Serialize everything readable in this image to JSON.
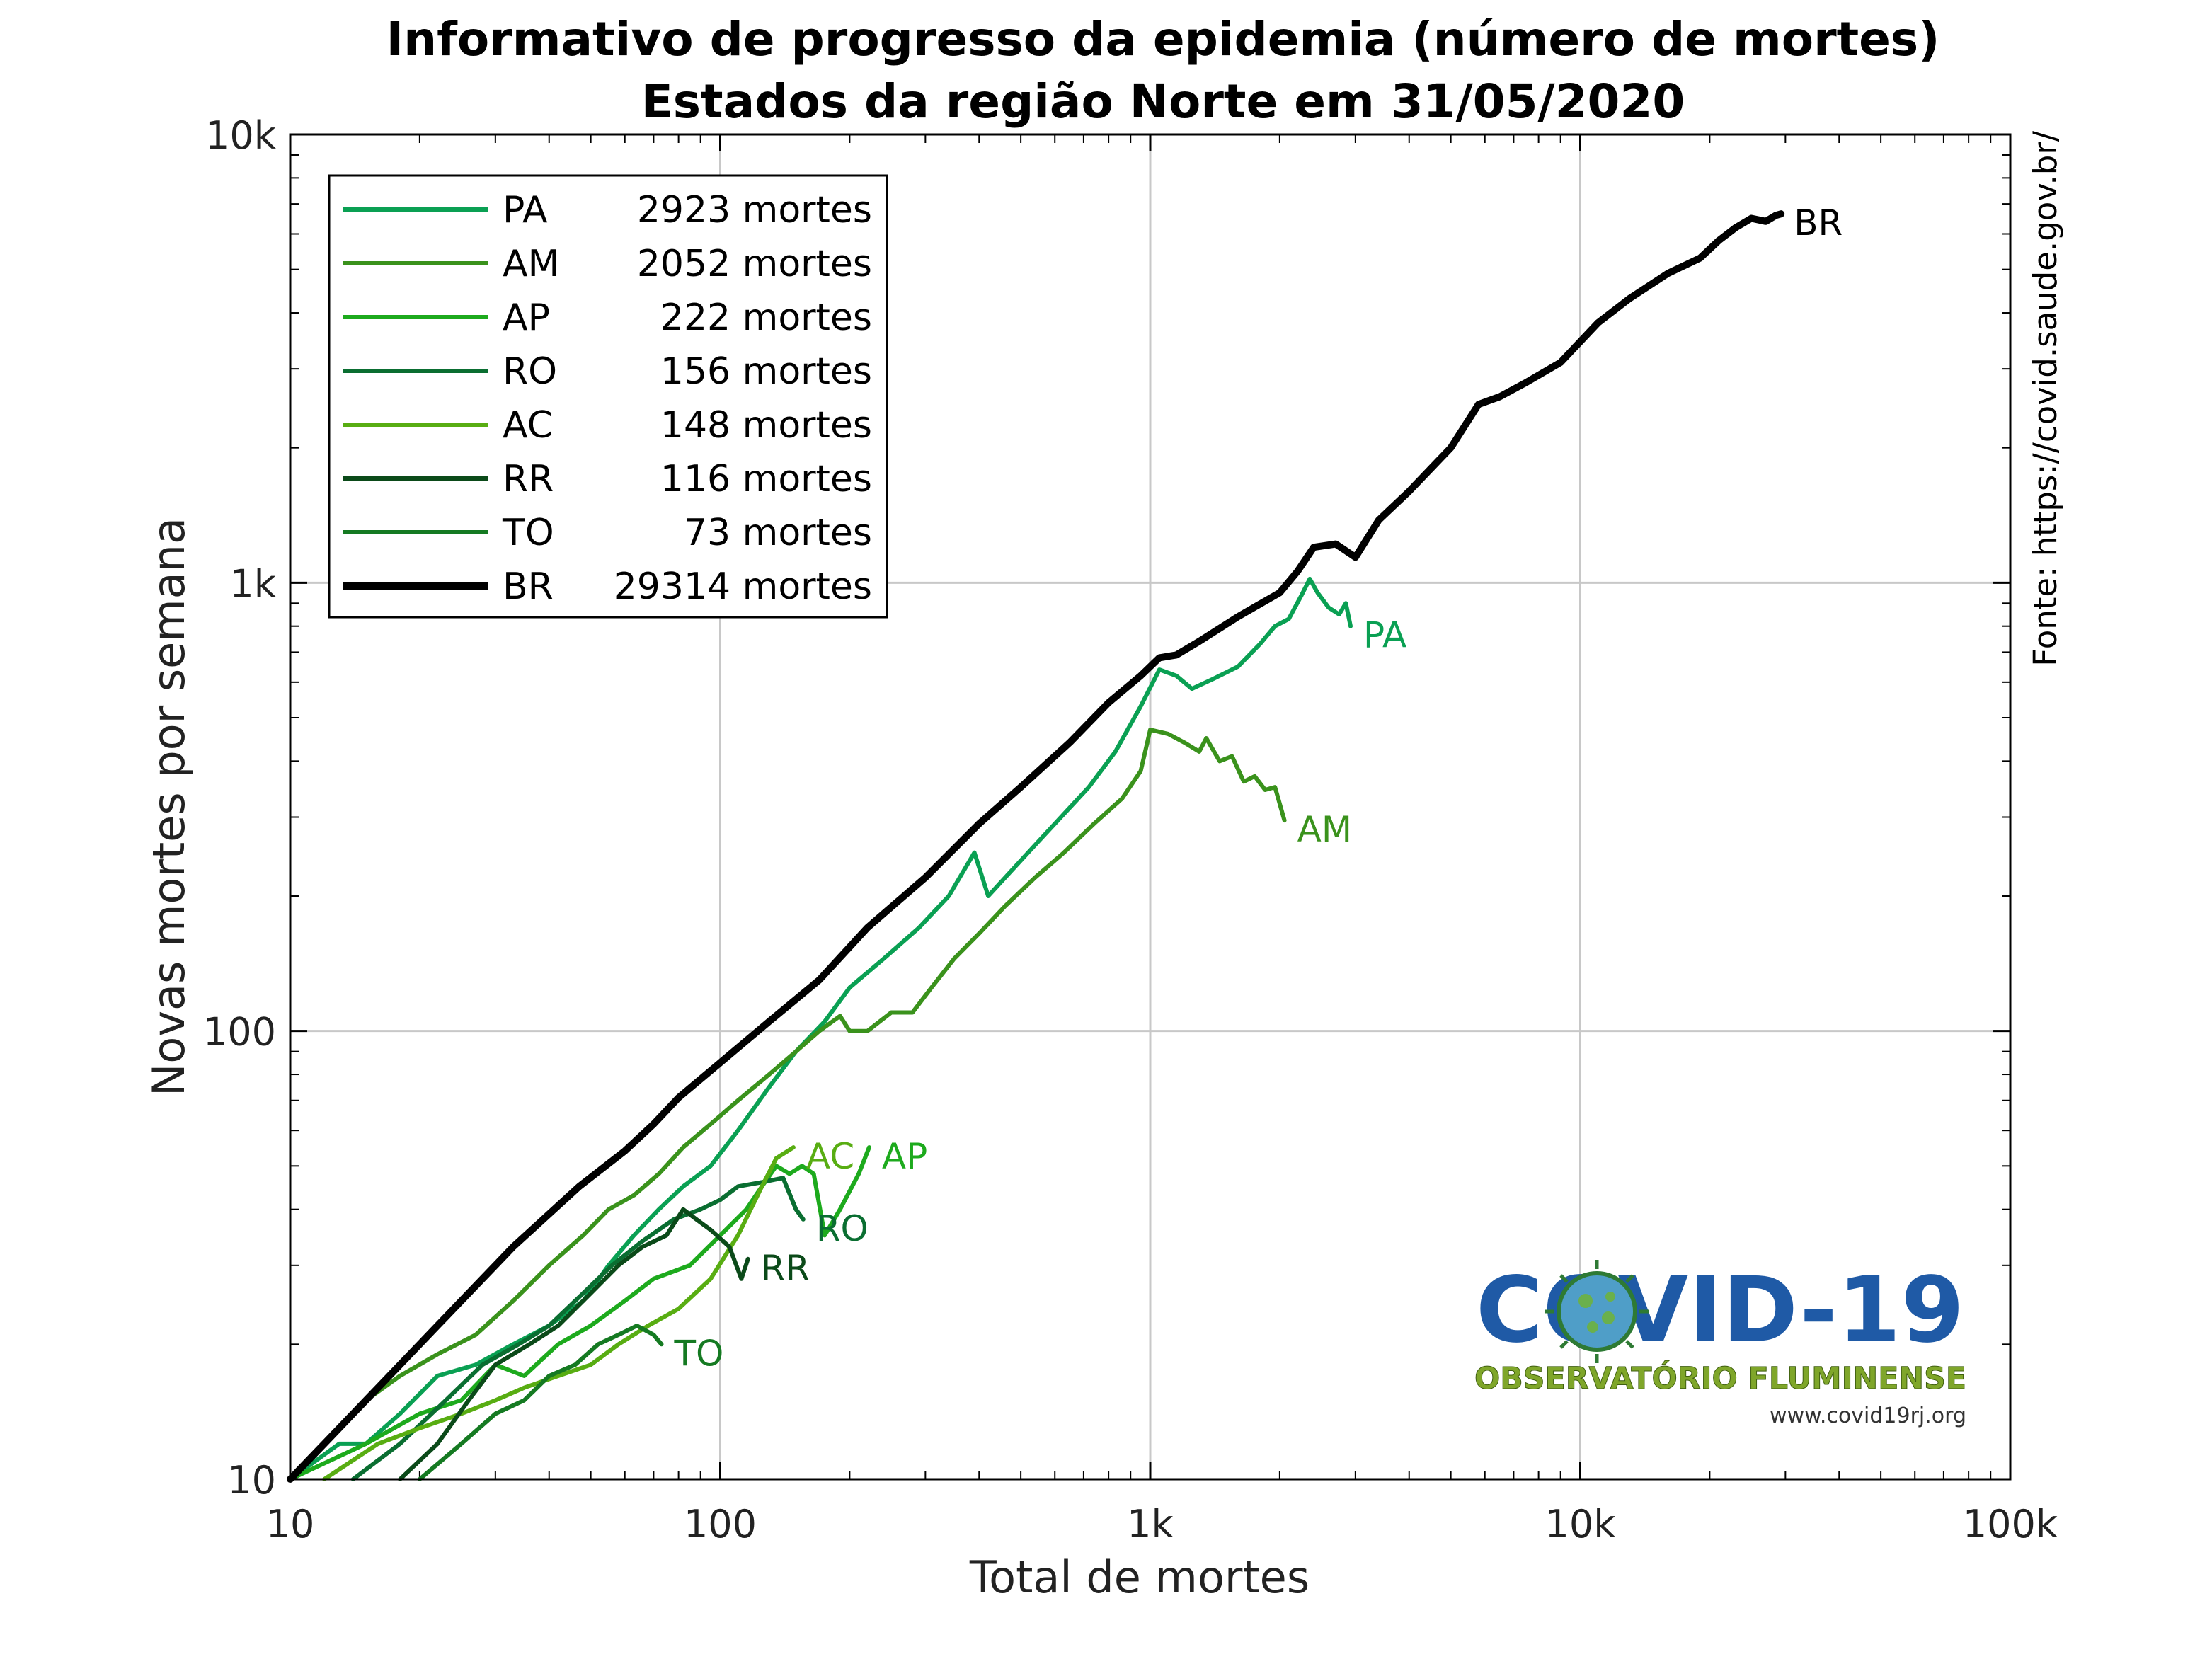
{
  "chart_data": {
    "type": "line",
    "title": "Informativo de progresso da epidemia (número de mortes)",
    "subtitle": "Estados da região Norte em 31/05/2020",
    "xlabel": "Total de mortes",
    "ylabel": "Novas mortes por semana",
    "xscale": "log",
    "yscale": "log",
    "xlim": [
      10,
      100000
    ],
    "ylim": [
      10,
      10000
    ],
    "grid": true,
    "legend_position": "top-left",
    "x_ticks": [
      10,
      100,
      1000,
      10000,
      100000
    ],
    "x_tick_labels": [
      "10",
      "100",
      "1k",
      "10k",
      "100k"
    ],
    "y_ticks": [
      10,
      100,
      1000,
      10000
    ],
    "y_tick_labels": [
      "10",
      "100",
      "1k",
      "10k"
    ],
    "source_label": "Fonte: https://covid.saude.gov.br/",
    "logo": {
      "title": "COVID-19",
      "subtitle": "OBSERVATÓRIO FLUMINENSE",
      "url": "www.covid19rj.org"
    },
    "series": [
      {
        "name": "PA",
        "legend_value": "2923 mortes",
        "color": "#0aa053",
        "end_label": "PA",
        "points": [
          [
            10,
            10
          ],
          [
            13,
            12
          ],
          [
            15,
            12
          ],
          [
            18,
            14
          ],
          [
            22,
            17
          ],
          [
            27,
            18
          ],
          [
            33,
            20
          ],
          [
            40,
            22
          ],
          [
            48,
            25
          ],
          [
            55,
            30
          ],
          [
            63,
            35
          ],
          [
            72,
            40
          ],
          [
            82,
            45
          ],
          [
            95,
            50
          ],
          [
            110,
            60
          ],
          [
            130,
            75
          ],
          [
            150,
            90
          ],
          [
            175,
            105
          ],
          [
            200,
            125
          ],
          [
            240,
            145
          ],
          [
            290,
            170
          ],
          [
            340,
            200
          ],
          [
            390,
            250
          ],
          [
            420,
            200
          ],
          [
            470,
            225
          ],
          [
            540,
            260
          ],
          [
            620,
            300
          ],
          [
            720,
            350
          ],
          [
            830,
            420
          ],
          [
            950,
            530
          ],
          [
            1050,
            640
          ],
          [
            1150,
            620
          ],
          [
            1250,
            580
          ],
          [
            1400,
            610
          ],
          [
            1600,
            650
          ],
          [
            1800,
            730
          ],
          [
            1950,
            800
          ],
          [
            2100,
            830
          ],
          [
            2250,
            940
          ],
          [
            2350,
            1020
          ],
          [
            2450,
            950
          ],
          [
            2600,
            880
          ],
          [
            2750,
            850
          ],
          [
            2850,
            900
          ],
          [
            2923,
            800
          ]
        ]
      },
      {
        "name": "AM",
        "legend_value": "2052 mortes",
        "color": "#3a921c",
        "end_label": "AM",
        "points": [
          [
            10,
            10
          ],
          [
            12,
            12
          ],
          [
            15,
            15
          ],
          [
            18,
            17
          ],
          [
            22,
            19
          ],
          [
            27,
            21
          ],
          [
            33,
            25
          ],
          [
            40,
            30
          ],
          [
            48,
            35
          ],
          [
            55,
            40
          ],
          [
            63,
            43
          ],
          [
            72,
            48
          ],
          [
            82,
            55
          ],
          [
            95,
            62
          ],
          [
            110,
            70
          ],
          [
            130,
            80
          ],
          [
            150,
            90
          ],
          [
            170,
            100
          ],
          [
            190,
            108
          ],
          [
            200,
            100
          ],
          [
            220,
            100
          ],
          [
            250,
            110
          ],
          [
            280,
            110
          ],
          [
            310,
            125
          ],
          [
            350,
            145
          ],
          [
            400,
            165
          ],
          [
            460,
            190
          ],
          [
            540,
            220
          ],
          [
            630,
            250
          ],
          [
            740,
            290
          ],
          [
            860,
            330
          ],
          [
            950,
            380
          ],
          [
            1000,
            470
          ],
          [
            1100,
            460
          ],
          [
            1200,
            440
          ],
          [
            1300,
            420
          ],
          [
            1350,
            450
          ],
          [
            1450,
            400
          ],
          [
            1550,
            410
          ],
          [
            1650,
            360
          ],
          [
            1750,
            370
          ],
          [
            1850,
            345
          ],
          [
            1950,
            350
          ],
          [
            2052,
            295
          ]
        ]
      },
      {
        "name": "AP",
        "legend_value": "222 mortes",
        "color": "#1daa1d",
        "end_label": "AP",
        "points": [
          [
            10,
            10
          ],
          [
            15,
            12
          ],
          [
            20,
            14
          ],
          [
            25,
            15
          ],
          [
            30,
            18
          ],
          [
            35,
            17
          ],
          [
            42,
            20
          ],
          [
            50,
            22
          ],
          [
            60,
            25
          ],
          [
            70,
            28
          ],
          [
            85,
            30
          ],
          [
            100,
            35
          ],
          [
            115,
            40
          ],
          [
            125,
            45
          ],
          [
            135,
            50
          ],
          [
            145,
            48
          ],
          [
            155,
            50
          ],
          [
            165,
            48
          ],
          [
            175,
            35
          ],
          [
            190,
            40
          ],
          [
            210,
            48
          ],
          [
            222,
            55
          ]
        ]
      },
      {
        "name": "RO",
        "legend_value": "156 mortes",
        "color": "#0a6e31",
        "end_label": "RO",
        "points": [
          [
            14,
            10
          ],
          [
            18,
            12
          ],
          [
            23,
            15
          ],
          [
            28,
            18
          ],
          [
            34,
            20
          ],
          [
            40,
            22
          ],
          [
            48,
            26
          ],
          [
            56,
            30
          ],
          [
            66,
            34
          ],
          [
            78,
            38
          ],
          [
            90,
            40
          ],
          [
            100,
            42
          ],
          [
            110,
            45
          ],
          [
            125,
            46
          ],
          [
            140,
            47
          ],
          [
            150,
            40
          ],
          [
            156,
            38
          ]
        ]
      },
      {
        "name": "AC",
        "legend_value": "148 mortes",
        "color": "#58ad12",
        "end_label": "AC",
        "points": [
          [
            12,
            10
          ],
          [
            16,
            12
          ],
          [
            20,
            13
          ],
          [
            25,
            14
          ],
          [
            30,
            15
          ],
          [
            35,
            16
          ],
          [
            42,
            17
          ],
          [
            50,
            18
          ],
          [
            58,
            20
          ],
          [
            68,
            22
          ],
          [
            80,
            24
          ],
          [
            95,
            28
          ],
          [
            110,
            35
          ],
          [
            125,
            45
          ],
          [
            135,
            52
          ],
          [
            148,
            55
          ]
        ]
      },
      {
        "name": "RR",
        "legend_value": "116 mortes",
        "color": "#0b4a19",
        "end_label": "RR",
        "points": [
          [
            18,
            10
          ],
          [
            22,
            12
          ],
          [
            26,
            15
          ],
          [
            30,
            18
          ],
          [
            36,
            20
          ],
          [
            42,
            22
          ],
          [
            50,
            26
          ],
          [
            58,
            30
          ],
          [
            66,
            33
          ],
          [
            75,
            35
          ],
          [
            82,
            40
          ],
          [
            88,
            38
          ],
          [
            95,
            36
          ],
          [
            105,
            33
          ],
          [
            112,
            28
          ],
          [
            116,
            31
          ]
        ]
      },
      {
        "name": "TO",
        "legend_value": "73 mortes",
        "color": "#157a22",
        "end_label": "TO",
        "points": [
          [
            20,
            10
          ],
          [
            25,
            12
          ],
          [
            30,
            14
          ],
          [
            35,
            15
          ],
          [
            40,
            17
          ],
          [
            46,
            18
          ],
          [
            52,
            20
          ],
          [
            58,
            21
          ],
          [
            64,
            22
          ],
          [
            70,
            21
          ],
          [
            73,
            20
          ]
        ]
      },
      {
        "name": "BR",
        "legend_value": "29314 mortes",
        "color": "#000000",
        "end_label": "BR",
        "points": [
          [
            10,
            10
          ],
          [
            15,
            15
          ],
          [
            22,
            22
          ],
          [
            33,
            33
          ],
          [
            47,
            45
          ],
          [
            60,
            54
          ],
          [
            70,
            62
          ],
          [
            80,
            71
          ],
          [
            100,
            85
          ],
          [
            130,
            105
          ],
          [
            170,
            130
          ],
          [
            220,
            170
          ],
          [
            300,
            220
          ],
          [
            400,
            290
          ],
          [
            500,
            350
          ],
          [
            650,
            440
          ],
          [
            800,
            540
          ],
          [
            950,
            620
          ],
          [
            1050,
            680
          ],
          [
            1150,
            690
          ],
          [
            1300,
            740
          ],
          [
            1600,
            840
          ],
          [
            2000,
            950
          ],
          [
            2200,
            1060
          ],
          [
            2400,
            1200
          ],
          [
            2700,
            1220
          ],
          [
            3000,
            1140
          ],
          [
            3400,
            1380
          ],
          [
            4000,
            1600
          ],
          [
            5000,
            2000
          ],
          [
            5800,
            2500
          ],
          [
            6500,
            2600
          ],
          [
            7500,
            2800
          ],
          [
            9000,
            3100
          ],
          [
            11000,
            3800
          ],
          [
            13000,
            4300
          ],
          [
            16000,
            4900
          ],
          [
            19000,
            5300
          ],
          [
            21000,
            5800
          ],
          [
            23000,
            6200
          ],
          [
            25000,
            6500
          ],
          [
            27000,
            6400
          ],
          [
            28500,
            6600
          ],
          [
            29314,
            6650
          ]
        ]
      }
    ]
  }
}
